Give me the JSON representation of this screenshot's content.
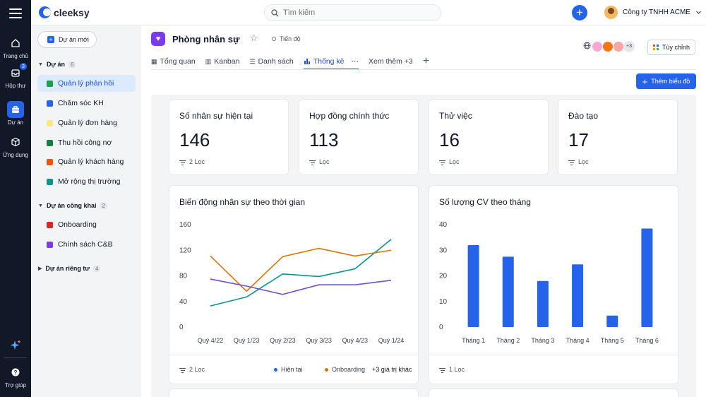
{
  "app": {
    "brand": "cleeksy"
  },
  "rail": {
    "items": [
      {
        "label": "Trang chủ",
        "icon": "home-icon"
      },
      {
        "label": "Hộp thư",
        "icon": "inbox-icon",
        "badge": "3"
      },
      {
        "label": "Dự án",
        "icon": "briefcase-icon",
        "active": true
      },
      {
        "label": "Ứng dụng",
        "icon": "cube-icon"
      }
    ],
    "help": "Trợ giúp"
  },
  "topbar": {
    "search_placeholder": "Tìm kiếm",
    "company": "Công ty TNHH ACME"
  },
  "sidebar": {
    "new_project": "Dự án mới",
    "sections": [
      {
        "label": "Dự án",
        "count": "6"
      },
      {
        "label": "Dự án công khai",
        "count": "2"
      },
      {
        "label": "Dự án riêng tư",
        "count": "4"
      }
    ],
    "projects": [
      {
        "label": "Quản lý phản hồi",
        "color": "#16a34a"
      },
      {
        "label": "Chăm sóc KH",
        "color": "#2563eb"
      },
      {
        "label": "Quản lý đơn hàng",
        "color": "#fde68a"
      },
      {
        "label": "Thu hồi công nợ",
        "color": "#15803d"
      },
      {
        "label": "Quản lý khách hàng",
        "color": "#ea580c"
      },
      {
        "label": "Mở rộng thị trường",
        "color": "#0d9488"
      }
    ],
    "public_projects": [
      {
        "label": "Onboarding",
        "color": "#dc2626"
      },
      {
        "label": "Chính sách C&B",
        "color": "#7c3aed"
      }
    ]
  },
  "header": {
    "title": "Phòng nhân sự",
    "progress": "Tiến độ",
    "tabs": [
      "Tổng quan",
      "Kanban",
      "Danh sách",
      "Thống kê",
      "Xem thêm +3"
    ],
    "active_tab": "Thống kê",
    "members_more": "+3",
    "customize": "Tùy chỉnh",
    "add_chart": "Thêm biểu đồ"
  },
  "stats": [
    {
      "title": "Số nhân sự hiện tại",
      "value": "146",
      "filter": "2 Lọc"
    },
    {
      "title": "Hợp đồng chính thức",
      "value": "113",
      "filter": "Lọc"
    },
    {
      "title": "Thử việc",
      "value": "16",
      "filter": "Lọc"
    },
    {
      "title": "Đào tạo",
      "value": "17",
      "filter": "Lọc"
    }
  ],
  "line_chart": {
    "title": "Biến động nhân sự theo thời gian",
    "filter": "2 Lọc",
    "legend_more": "+3 giá trị khác"
  },
  "bar_chart": {
    "title": "Số lượng CV theo tháng",
    "filter": "1 Lọc"
  },
  "chart_data": [
    {
      "type": "line",
      "title": "Biến động nhân sự theo thời gian",
      "categories": [
        "Quý 4/22",
        "Quý 1/23",
        "Quý 2/23",
        "Quý 3/23",
        "Quý 4/23",
        "Quý 1/24"
      ],
      "ylim": [
        0,
        160
      ],
      "yticks": [
        0,
        40,
        80,
        120,
        160
      ],
      "series": [
        {
          "name": "Hiện tại",
          "color": "#0d9488",
          "values": [
            33,
            47,
            83,
            79,
            91,
            137
          ]
        },
        {
          "name": "Onboarding",
          "color": "#d97706",
          "values": [
            111,
            56,
            110,
            123,
            111,
            120
          ]
        },
        {
          "color": "#6d4fd6",
          "values": [
            75,
            64,
            51,
            66,
            66,
            73
          ]
        }
      ],
      "legend_colors": [
        "#2563eb",
        "#d97706"
      ]
    },
    {
      "type": "bar",
      "title": "Số lượng CV theo tháng",
      "categories": [
        "Tháng 1",
        "Tháng 2",
        "Tháng 3",
        "Tháng 4",
        "Tháng 5",
        "Tháng 6"
      ],
      "values": [
        32,
        27.5,
        18,
        24.5,
        4.5,
        38.5
      ],
      "ylim": [
        0,
        40
      ],
      "yticks": [
        0,
        10,
        20,
        30,
        40
      ],
      "color": "#2563eb"
    }
  ]
}
